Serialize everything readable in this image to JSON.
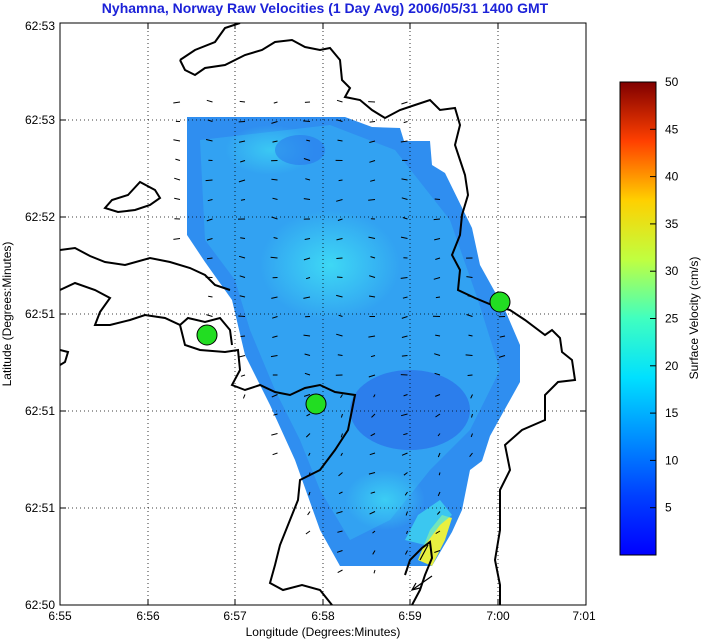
{
  "title": "Nyhamna, Norway Raw Velocities (1 Day Avg) 2006/05/31 1400 GMT",
  "x_axis": {
    "label": "Longitude (Degrees:Minutes)",
    "ticks": [
      "6:55",
      "6:56",
      "6:57",
      "6:58",
      "6:59",
      "7:00",
      "7:01"
    ]
  },
  "y_axis": {
    "label": "Latitude (Degrees:Minutes)",
    "ticks": [
      "62:50",
      "62:51",
      "62:51",
      "62:51",
      "62:52",
      "62:53",
      "62:53"
    ]
  },
  "colorbar": {
    "label": "Surface Velocity (cm/s)",
    "ticks": [
      "5",
      "10",
      "15",
      "20",
      "25",
      "30",
      "35",
      "40",
      "45",
      "50"
    ],
    "range": [
      0,
      50
    ],
    "colormap": "jet"
  },
  "colors": {
    "title": "#1c22d8",
    "site_marker": "#22dd22",
    "coastline": "#000000",
    "field_low": "#2a7cf0",
    "field_mid": "#18c8f8",
    "field_high": "#f8f020"
  },
  "radar_sites": [
    {
      "id": "site-west"
    },
    {
      "id": "site-south"
    },
    {
      "id": "site-east"
    }
  ]
}
